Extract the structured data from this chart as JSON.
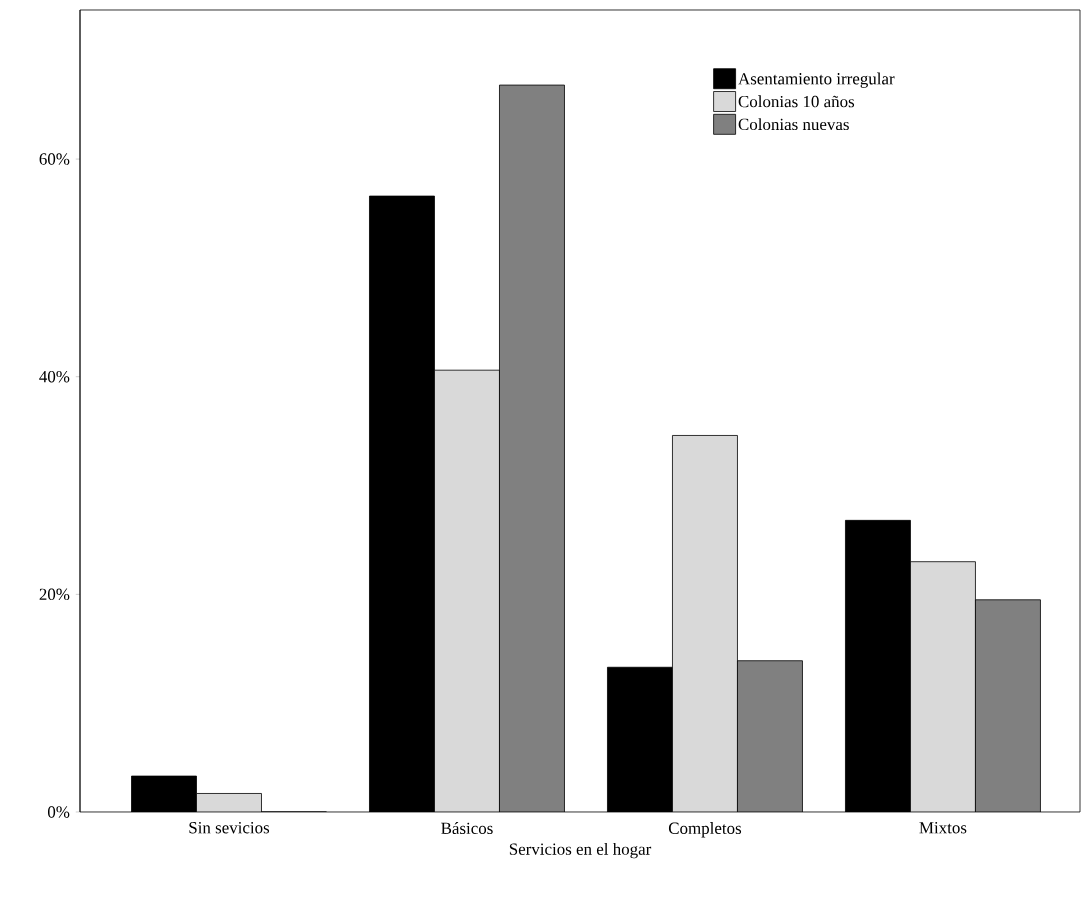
{
  "chart_data": {
    "type": "bar",
    "xlabel": "Servicios en el hogar",
    "categories": [
      "Sin sevicios",
      "Básicos",
      "Completos",
      "Mixtos"
    ],
    "series": [
      {
        "name": "Asentamiento irregular",
        "color": "#000000",
        "values": [
          3.3,
          56.6,
          13.3,
          26.8
        ]
      },
      {
        "name": "Colonias 10 años",
        "color": "#d9d9d9",
        "values": [
          1.7,
          40.6,
          34.6,
          23.0
        ]
      },
      {
        "name": "Colonias nuevas",
        "color": "#808080",
        "values": [
          0,
          66.8,
          13.9,
          19.5
        ]
      }
    ],
    "ylim": [
      0,
      73.7
    ],
    "yticks": [
      {
        "value": 0,
        "label": "0%"
      },
      {
        "value": 20,
        "label": "20%"
      },
      {
        "value": 40,
        "label": "40%"
      },
      {
        "value": 60,
        "label": "60%"
      }
    ],
    "grid": false,
    "legend": "top right"
  }
}
